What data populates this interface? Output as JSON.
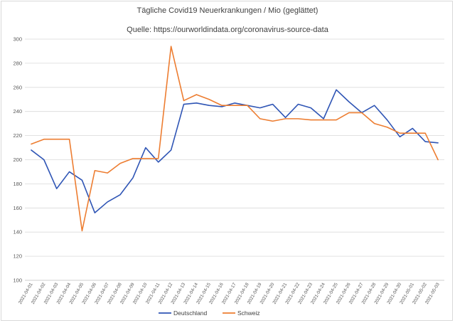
{
  "chart_data": {
    "type": "line",
    "title": "Tägliche Covid19 Neuerkrankungen / Mio (geglättet)",
    "subtitle": "Quelle: https://ourworldindata.org/coronavirus-source-data",
    "xlabel": "",
    "ylabel": "",
    "ylim": [
      100,
      300
    ],
    "yticks": [
      100,
      120,
      140,
      160,
      180,
      200,
      220,
      240,
      260,
      280,
      300
    ],
    "grid": true,
    "legend_position": "bottom",
    "categories": [
      "2021-04-01",
      "2021-04-02",
      "2021-04-03",
      "2021-04-04",
      "2021-04-05",
      "2021-04-06",
      "2021-04-07",
      "2021-04-08",
      "2021-04-09",
      "2021-04-10",
      "2021-04-11",
      "2021-04-12",
      "2021-04-13",
      "2021-04-14",
      "2021-04-15",
      "2021-04-16",
      "2021-04-17",
      "2021-04-18",
      "2021-04-19",
      "2021-04-20",
      "2021-04-21",
      "2021-04-22",
      "2021-04-23",
      "2021-04-24",
      "2021-04-25",
      "2021-04-26",
      "2021-04-27",
      "2021-04-28",
      "2021-04-29",
      "2021-04-30",
      "2021-05-01",
      "2021-05-02",
      "2021-05-03"
    ],
    "series": [
      {
        "name": "Deutschland",
        "color": "#2f55b5",
        "values": [
          208,
          200,
          176,
          190,
          183,
          156,
          165,
          171,
          185,
          210,
          198,
          208,
          246,
          247,
          245,
          244,
          247,
          245,
          243,
          246,
          235,
          246,
          243,
          234,
          258,
          248,
          239,
          245,
          233,
          219,
          226,
          215,
          214
        ]
      },
      {
        "name": "Schweiz",
        "color": "#ed7d31",
        "values": [
          213,
          217,
          217,
          217,
          141,
          191,
          189,
          197,
          201,
          201,
          201,
          294,
          249,
          254,
          250,
          245,
          245,
          245,
          234,
          232,
          234,
          234,
          233,
          233,
          233,
          239,
          239,
          230,
          227,
          222,
          222,
          222,
          200
        ]
      }
    ]
  }
}
